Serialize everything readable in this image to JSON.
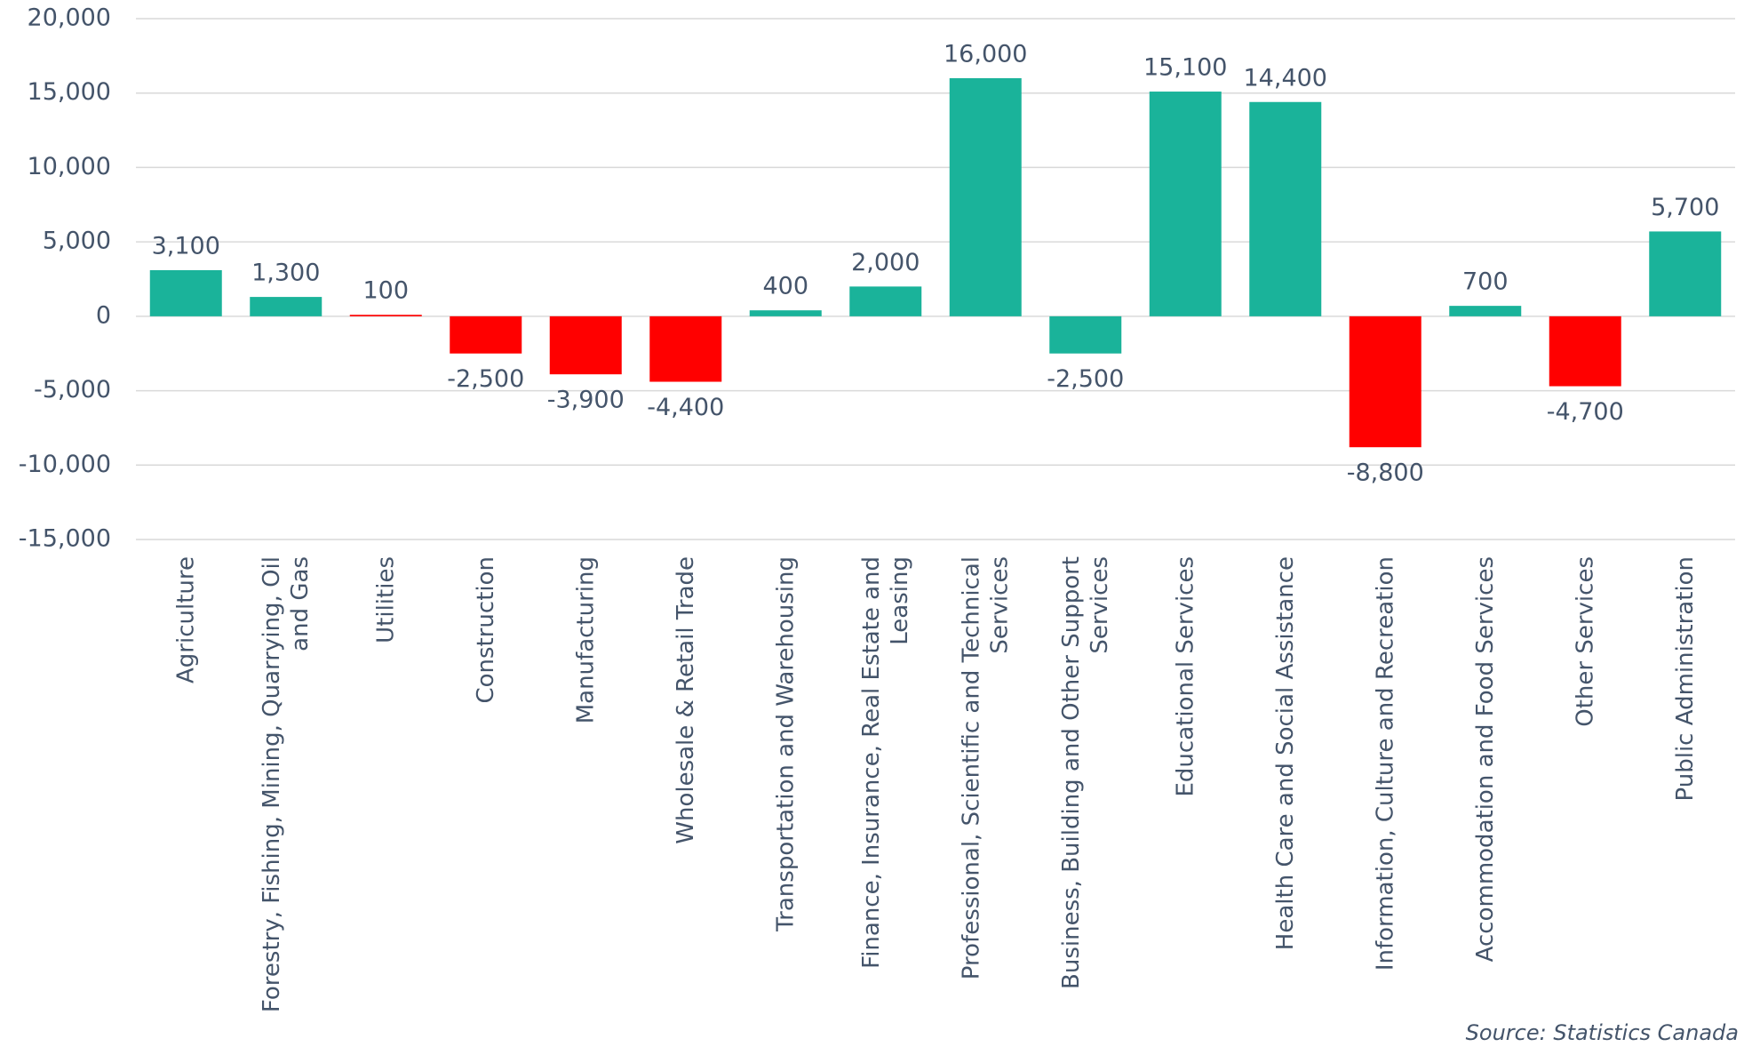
{
  "chart_data": {
    "type": "bar",
    "categories": [
      "Agriculture",
      "Forestry, Fishing, Mining, Quarrying, Oil and Gas",
      "Utilities",
      "Construction",
      "Manufacturing",
      "Wholesale & Retail Trade",
      "Transportation and Warehousing",
      "Finance, Insurance, Real Estate and Leasing",
      "Professional, Scientific and Technical Services",
      "Business, Building and Other Support Services",
      "Educational Services",
      "Health Care and Social Assistance",
      "Information, Culture and Recreation",
      "Accommodation and Food Services",
      "Other Services",
      "Public Administration"
    ],
    "values": [
      3100,
      1300,
      100,
      -2500,
      -3900,
      -4400,
      400,
      2000,
      16000,
      -2500,
      15100,
      14400,
      -8800,
      700,
      -4700,
      5700
    ],
    "value_labels": [
      "3,100",
      "1,300",
      "100",
      "-2,500",
      "-3,900",
      "-4,400",
      "400",
      "2,000",
      "16,000",
      "-2,500",
      "15,100",
      "14,400",
      "-8,800",
      "700",
      "-4,700",
      "5,700"
    ],
    "colors": [
      "#1ab39a",
      "#1ab39a",
      "#ff0000",
      "#ff0000",
      "#ff0000",
      "#ff0000",
      "#1ab39a",
      "#1ab39a",
      "#1ab39a",
      "#1ab39a",
      "#1ab39a",
      "#1ab39a",
      "#ff0000",
      "#1ab39a",
      "#ff0000",
      "#1ab39a"
    ],
    "ylim": [
      -15000,
      20000
    ],
    "yticks": [
      {
        "value": -15000,
        "label": "-15,000"
      },
      {
        "value": -10000,
        "label": "-10,000"
      },
      {
        "value": -5000,
        "label": "-5,000"
      },
      0,
      {
        "value": 5000,
        "label": "5,000"
      },
      {
        "value": 10000,
        "label": "10,000"
      },
      {
        "value": 15000,
        "label": "15,000"
      },
      {
        "value": 20000,
        "label": "20,000"
      }
    ],
    "grid": true,
    "source": "Source: Statistics Canada"
  }
}
